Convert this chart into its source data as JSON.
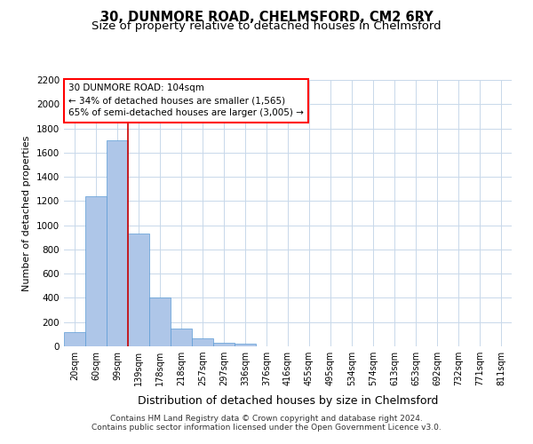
{
  "title": "30, DUNMORE ROAD, CHELMSFORD, CM2 6RY",
  "subtitle": "Size of property relative to detached houses in Chelmsford",
  "xlabel": "Distribution of detached houses by size in Chelmsford",
  "ylabel": "Number of detached properties",
  "footnote1": "Contains HM Land Registry data © Crown copyright and database right 2024.",
  "footnote2": "Contains public sector information licensed under the Open Government Licence v3.0.",
  "annotation_line1": "30 DUNMORE ROAD: 104sqm",
  "annotation_line2": "← 34% of detached houses are smaller (1,565)",
  "annotation_line3": "65% of semi-detached houses are larger (3,005) →",
  "bar_color": "#aec6e8",
  "bar_edge_color": "#5b9bd5",
  "red_line_x": 2.5,
  "red_line_color": "#cc0000",
  "categories": [
    "20sqm",
    "60sqm",
    "99sqm",
    "139sqm",
    "178sqm",
    "218sqm",
    "257sqm",
    "297sqm",
    "336sqm",
    "376sqm",
    "416sqm",
    "455sqm",
    "495sqm",
    "534sqm",
    "574sqm",
    "613sqm",
    "653sqm",
    "692sqm",
    "732sqm",
    "771sqm",
    "811sqm"
  ],
  "values": [
    115,
    1240,
    1700,
    930,
    400,
    150,
    65,
    30,
    20,
    0,
    0,
    0,
    0,
    0,
    0,
    0,
    0,
    0,
    0,
    0,
    0
  ],
  "ylim": [
    0,
    2200
  ],
  "yticks": [
    0,
    200,
    400,
    600,
    800,
    1000,
    1200,
    1400,
    1600,
    1800,
    2000,
    2200
  ],
  "background_color": "#ffffff",
  "grid_color": "#c8d8ea",
  "title_fontsize": 10.5,
  "subtitle_fontsize": 9.5,
  "ylabel_fontsize": 8,
  "xlabel_fontsize": 9,
  "tick_fontsize": 7,
  "footnote_fontsize": 6.5
}
